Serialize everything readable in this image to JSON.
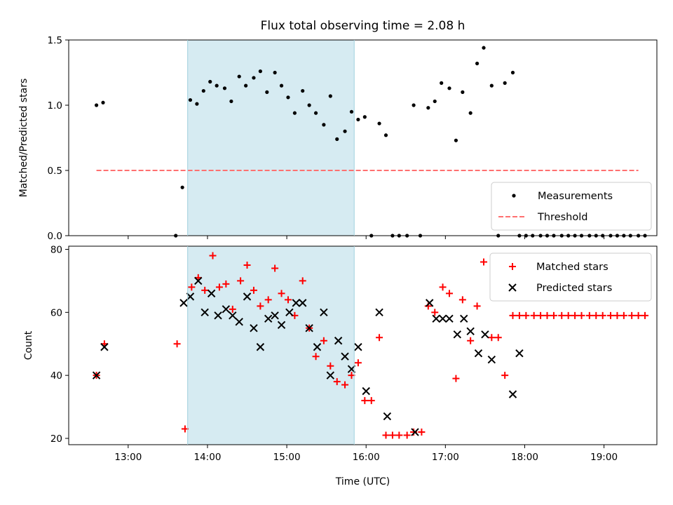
{
  "chart_data": [
    {
      "type": "scatter",
      "title": "Flux total observing time = 2.08 h",
      "ylabel": "Matched/Predicted stars",
      "xlabel": "",
      "xlim": [
        "12:15",
        "19:40"
      ],
      "ylim": [
        0,
        1.5
      ],
      "yticks": [
        0.0,
        0.5,
        1.0,
        1.5
      ],
      "ytick_labels": [
        "0.0",
        "0.5",
        "1.0",
        "1.5"
      ],
      "xticks": [
        "13:00",
        "14:00",
        "15:00",
        "16:00",
        "17:00",
        "18:00",
        "19:00"
      ],
      "shaded_interval": [
        "13:45",
        "15:51"
      ],
      "legend_position": "lower-right",
      "series": [
        {
          "name": "Measurements",
          "style": "dots",
          "color": "#000000",
          "points": [
            [
              "12:36",
              1.0
            ],
            [
              "12:41",
              1.02
            ],
            [
              "13:36",
              0.0
            ],
            [
              "13:41",
              0.37
            ],
            [
              "13:47",
              1.04
            ],
            [
              "13:52",
              1.01
            ],
            [
              "13:57",
              1.11
            ],
            [
              "14:02",
              1.18
            ],
            [
              "14:07",
              1.15
            ],
            [
              "14:13",
              1.13
            ],
            [
              "14:18",
              1.03
            ],
            [
              "14:24",
              1.22
            ],
            [
              "14:29",
              1.15
            ],
            [
              "14:35",
              1.21
            ],
            [
              "14:40",
              1.26
            ],
            [
              "14:45",
              1.1
            ],
            [
              "14:51",
              1.25
            ],
            [
              "14:56",
              1.15
            ],
            [
              "15:01",
              1.06
            ],
            [
              "15:06",
              0.94
            ],
            [
              "15:12",
              1.11
            ],
            [
              "15:17",
              1.0
            ],
            [
              "15:22",
              0.94
            ],
            [
              "15:28",
              0.85
            ],
            [
              "15:33",
              1.07
            ],
            [
              "15:38",
              0.74
            ],
            [
              "15:44",
              0.8
            ],
            [
              "15:49",
              0.95
            ],
            [
              "15:54",
              0.89
            ],
            [
              "15:59",
              0.91
            ],
            [
              "16:04",
              0.0
            ],
            [
              "16:10",
              0.86
            ],
            [
              "16:15",
              0.77
            ],
            [
              "16:20",
              0.0
            ],
            [
              "16:25",
              0.0
            ],
            [
              "16:31",
              0.0
            ],
            [
              "16:36",
              1.0
            ],
            [
              "16:41",
              0.0
            ],
            [
              "16:47",
              0.98
            ],
            [
              "16:52",
              1.03
            ],
            [
              "16:57",
              1.17
            ],
            [
              "17:03",
              1.13
            ],
            [
              "17:08",
              0.73
            ],
            [
              "17:13",
              1.1
            ],
            [
              "17:19",
              0.94
            ],
            [
              "17:24",
              1.32
            ],
            [
              "17:29",
              1.44
            ],
            [
              "17:35",
              1.15
            ],
            [
              "17:40",
              0.0
            ],
            [
              "17:45",
              1.17
            ],
            [
              "17:51",
              1.25
            ],
            [
              "17:56",
              0.0
            ],
            [
              "18:01",
              0.0
            ],
            [
              "18:06",
              0.0
            ],
            [
              "18:12",
              0.0
            ],
            [
              "18:17",
              0.0
            ],
            [
              "18:22",
              0.0
            ],
            [
              "18:28",
              0.0
            ],
            [
              "18:33",
              0.0
            ],
            [
              "18:38",
              0.0
            ],
            [
              "18:43",
              0.0
            ],
            [
              "18:49",
              0.0
            ],
            [
              "18:54",
              0.0
            ],
            [
              "18:59",
              0.0
            ],
            [
              "19:05",
              0.0
            ],
            [
              "19:10",
              0.0
            ],
            [
              "19:15",
              0.0
            ],
            [
              "19:20",
              0.0
            ],
            [
              "19:26",
              0.0
            ],
            [
              "19:31",
              0.0
            ]
          ]
        },
        {
          "name": "Threshold",
          "style": "dashed-line",
          "color": "#ff7070",
          "points": [
            [
              "12:36",
              0.5
            ],
            [
              "19:26",
              0.5
            ]
          ]
        }
      ]
    },
    {
      "type": "scatter",
      "title": "",
      "xlabel": "Time (UTC)",
      "ylabel": "Count",
      "xlim": [
        "12:15",
        "19:40"
      ],
      "ylim": [
        18,
        81
      ],
      "yticks": [
        20,
        40,
        60,
        80
      ],
      "ytick_labels": [
        "20",
        "40",
        "60",
        "80"
      ],
      "xticks": [
        "13:00",
        "14:00",
        "15:00",
        "16:00",
        "17:00",
        "18:00",
        "19:00"
      ],
      "xtick_labels": [
        "13:00",
        "14:00",
        "15:00",
        "16:00",
        "17:00",
        "18:00",
        "19:00"
      ],
      "shaded_interval": [
        "13:45",
        "15:51"
      ],
      "legend_position": "upper-right",
      "series": [
        {
          "name": "Matched stars",
          "style": "plus",
          "color": "#ff0000",
          "points": [
            [
              "12:36",
              40
            ],
            [
              "12:42",
              50
            ],
            [
              "13:37",
              50
            ],
            [
              "13:43",
              23
            ],
            [
              "13:48",
              68
            ],
            [
              "13:53",
              71
            ],
            [
              "13:58",
              67
            ],
            [
              "14:04",
              78
            ],
            [
              "14:09",
              68
            ],
            [
              "14:14",
              69
            ],
            [
              "14:19",
              61
            ],
            [
              "14:25",
              70
            ],
            [
              "14:30",
              75
            ],
            [
              "14:35",
              67
            ],
            [
              "14:40",
              62
            ],
            [
              "14:46",
              64
            ],
            [
              "14:51",
              74
            ],
            [
              "14:56",
              66
            ],
            [
              "15:01",
              64
            ],
            [
              "15:06",
              59
            ],
            [
              "15:12",
              70
            ],
            [
              "15:17",
              55
            ],
            [
              "15:22",
              46
            ],
            [
              "15:28",
              51
            ],
            [
              "15:33",
              43
            ],
            [
              "15:38",
              38
            ],
            [
              "15:44",
              37
            ],
            [
              "15:49",
              40
            ],
            [
              "15:54",
              44
            ],
            [
              "15:59",
              32
            ],
            [
              "16:04",
              32
            ],
            [
              "16:10",
              52
            ],
            [
              "16:15",
              21
            ],
            [
              "16:20",
              21
            ],
            [
              "16:25",
              21
            ],
            [
              "16:31",
              21
            ],
            [
              "16:36",
              22
            ],
            [
              "16:42",
              22
            ],
            [
              "16:47",
              62
            ],
            [
              "16:52",
              60
            ],
            [
              "16:58",
              68
            ],
            [
              "17:03",
              66
            ],
            [
              "17:08",
              39
            ],
            [
              "17:13",
              64
            ],
            [
              "17:19",
              51
            ],
            [
              "17:24",
              62
            ],
            [
              "17:29",
              76
            ],
            [
              "17:35",
              52
            ],
            [
              "17:40",
              52
            ],
            [
              "17:45",
              40
            ],
            [
              "17:51",
              59
            ],
            [
              "17:56",
              59
            ],
            [
              "18:01",
              59
            ],
            [
              "18:07",
              59
            ],
            [
              "18:12",
              59
            ],
            [
              "18:17",
              59
            ],
            [
              "18:22",
              59
            ],
            [
              "18:28",
              59
            ],
            [
              "18:33",
              59
            ],
            [
              "18:38",
              59
            ],
            [
              "18:43",
              59
            ],
            [
              "18:49",
              59
            ],
            [
              "18:54",
              59
            ],
            [
              "18:59",
              59
            ],
            [
              "19:05",
              59
            ],
            [
              "19:10",
              59
            ],
            [
              "19:15",
              59
            ],
            [
              "19:21",
              59
            ],
            [
              "19:26",
              59
            ],
            [
              "19:31",
              59
            ]
          ]
        },
        {
          "name": "Predicted stars",
          "style": "x",
          "color": "#000000",
          "points": [
            [
              "12:36",
              40
            ],
            [
              "12:42",
              49
            ],
            [
              "13:42",
              63
            ],
            [
              "13:47",
              65
            ],
            [
              "13:53",
              70
            ],
            [
              "13:58",
              60
            ],
            [
              "14:03",
              66
            ],
            [
              "14:08",
              59
            ],
            [
              "14:14",
              61
            ],
            [
              "14:19",
              59
            ],
            [
              "14:24",
              57
            ],
            [
              "14:30",
              65
            ],
            [
              "14:35",
              55
            ],
            [
              "14:40",
              49
            ],
            [
              "14:46",
              58
            ],
            [
              "14:51",
              59
            ],
            [
              "14:56",
              56
            ],
            [
              "15:02",
              60
            ],
            [
              "15:07",
              63
            ],
            [
              "15:12",
              63
            ],
            [
              "15:17",
              55
            ],
            [
              "15:23",
              49
            ],
            [
              "15:28",
              60
            ],
            [
              "15:33",
              40
            ],
            [
              "15:39",
              51
            ],
            [
              "15:44",
              46
            ],
            [
              "15:49",
              42
            ],
            [
              "15:54",
              49
            ],
            [
              "16:00",
              35
            ],
            [
              "16:10",
              60
            ],
            [
              "16:16",
              27
            ],
            [
              "16:37",
              22
            ],
            [
              "16:48",
              63
            ],
            [
              "16:53",
              58
            ],
            [
              "16:58",
              58
            ],
            [
              "17:03",
              58
            ],
            [
              "17:09",
              53
            ],
            [
              "17:14",
              58
            ],
            [
              "17:19",
              54
            ],
            [
              "17:25",
              47
            ],
            [
              "17:30",
              53
            ],
            [
              "17:35",
              45
            ],
            [
              "17:51",
              34
            ],
            [
              "17:56",
              47
            ]
          ]
        }
      ]
    }
  ]
}
